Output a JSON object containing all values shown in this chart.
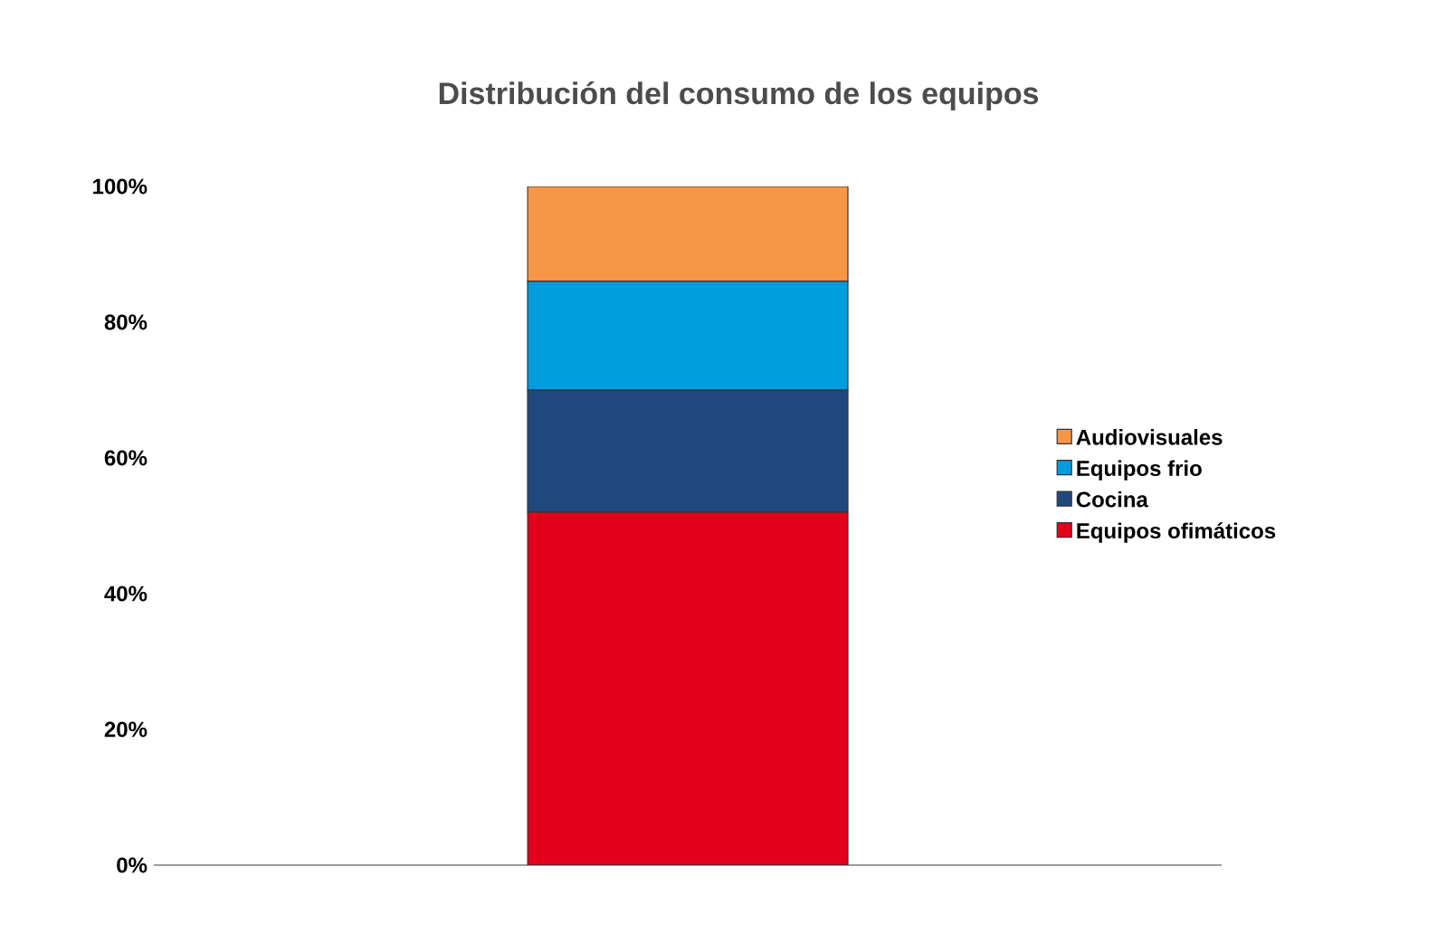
{
  "chart_data": {
    "type": "bar",
    "stacked": true,
    "title": "Distribución del consumo de los equipos",
    "categories": [
      null
    ],
    "series": [
      {
        "name": "Equipos ofimáticos",
        "color": "#e2001a",
        "values": [
          52
        ]
      },
      {
        "name": "Cocina",
        "color": "#1f497d",
        "values": [
          18
        ]
      },
      {
        "name": "Equipos frio",
        "color": "#009ddf",
        "values": [
          16
        ]
      },
      {
        "name": "Audiovisuales",
        "color": "#f79646",
        "values": [
          14
        ]
      }
    ],
    "ylim": [
      0,
      100
    ],
    "yticks": [
      {
        "value": 0,
        "label": "0%"
      },
      {
        "value": 20,
        "label": "20%"
      },
      {
        "value": 40,
        "label": "40%"
      },
      {
        "value": 60,
        "label": "60%"
      },
      {
        "value": 80,
        "label": "80%"
      },
      {
        "value": 100,
        "label": "100%"
      }
    ],
    "legend": "right"
  }
}
